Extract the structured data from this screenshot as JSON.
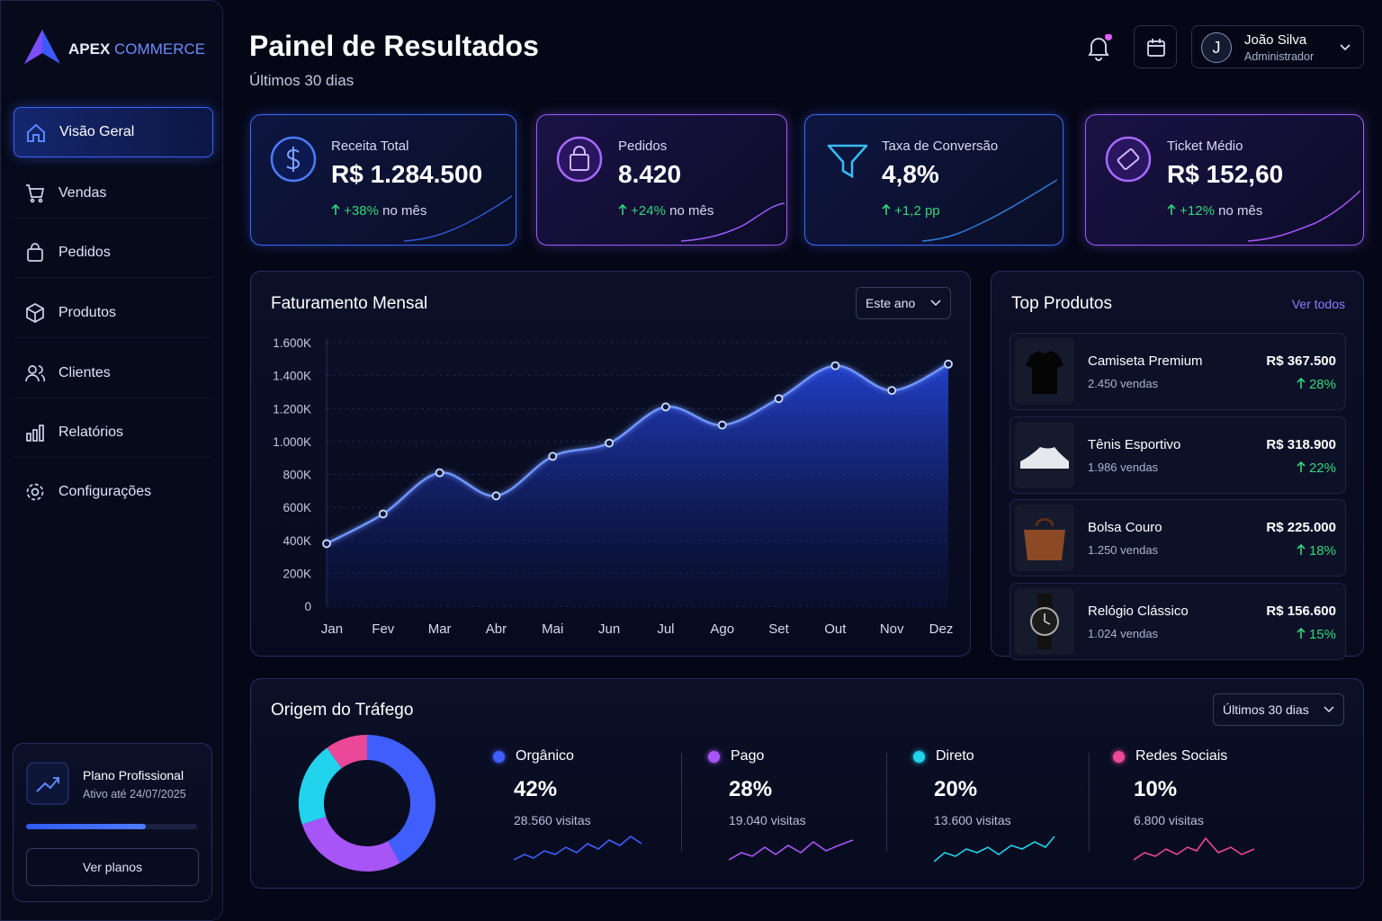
{
  "brand": {
    "name1": "APEX",
    "name2": "COMMERCE"
  },
  "nav": [
    "Visão Geral",
    "Vendas",
    "Pedidos",
    "Produtos",
    "Clientes",
    "Relatórios",
    "Configurações"
  ],
  "plan": {
    "title": "Plano Profissional",
    "subtitle": "Ativo até 24/07/2025",
    "button": "Ver planos",
    "progress": 70
  },
  "header": {
    "title": "Painel de Resultados",
    "subtitle": "Últimos 30 dias",
    "user_initial": "J",
    "user_name": "João Silva",
    "user_role": "Administrador"
  },
  "kpis": [
    {
      "label": "Receita Total",
      "value": "R$ 1.284.500",
      "change": "+38%",
      "suffix": "no mês"
    },
    {
      "label": "Pedidos",
      "value": "8.420",
      "change": "+24%",
      "suffix": "no mês"
    },
    {
      "label": "Taxa de Conversão",
      "value": "4,8%",
      "change": "+1,2 pp"
    },
    {
      "label": "Ticket Médio",
      "value": "R$ 152,60",
      "change": "+12%",
      "suffix": "no mês"
    }
  ],
  "revenue_chart": {
    "type": "area",
    "title": "Faturamento Mensal",
    "filter": "Este ano",
    "categories": [
      "Jan",
      "Fev",
      "Mar",
      "Abr",
      "Mai",
      "Jun",
      "Jul",
      "Ago",
      "Set",
      "Out",
      "Nov",
      "Dez"
    ],
    "values": [
      380,
      560,
      810,
      670,
      910,
      990,
      1210,
      1100,
      1260,
      1460,
      1310,
      1470
    ],
    "color": "#3d6bff",
    "ylim": [
      0,
      1600
    ],
    "yticks": [
      0,
      {
        "value": 200,
        "label": "200K"
      },
      {
        "value": 400,
        "label": "400K"
      },
      {
        "value": 600,
        "label": "600K"
      },
      {
        "value": 800,
        "label": "800K"
      },
      {
        "value": 1000,
        "label": "1.000K"
      },
      {
        "value": 1200,
        "label": "1.200K"
      },
      {
        "value": 1400,
        "label": "1.400K"
      },
      {
        "value": 1600,
        "label": "1.600K"
      }
    ],
    "grid": true
  },
  "top_products": {
    "title": "Top Produtos",
    "link": "Ver todos",
    "items": [
      {
        "name": "Camiseta Premium",
        "sales": "2.450 vendas",
        "revenue": "R$ 367.500",
        "share": "28%"
      },
      {
        "name": "Tênis Esportivo",
        "sales": "1.986 vendas",
        "revenue": "R$ 318.900",
        "share": "22%"
      },
      {
        "name": "Bolsa Couro",
        "sales": "1.250 vendas",
        "revenue": "R$ 225.000",
        "share": "18%"
      },
      {
        "name": "Relógio Clássico",
        "sales": "1.024 vendas",
        "revenue": "R$ 156.600",
        "share": "15%"
      }
    ]
  },
  "traffic": {
    "type": "donut",
    "title": "Origem do Tráfego",
    "filter": "Últimos 30 dias",
    "categories": [
      "Orgânico",
      "Pago",
      "Direto",
      "Redes Sociais"
    ],
    "values": [
      42,
      28,
      20,
      10
    ],
    "value_labels": [
      "42%",
      "28%",
      "20%",
      "10%"
    ],
    "visits": [
      "28.560 visitas",
      "19.040 visitas",
      "13.600 visitas",
      "6.800 visitas"
    ],
    "colors": [
      "#3f5efb",
      "#a855f7",
      "#22d3ee",
      "#ec4899"
    ]
  }
}
